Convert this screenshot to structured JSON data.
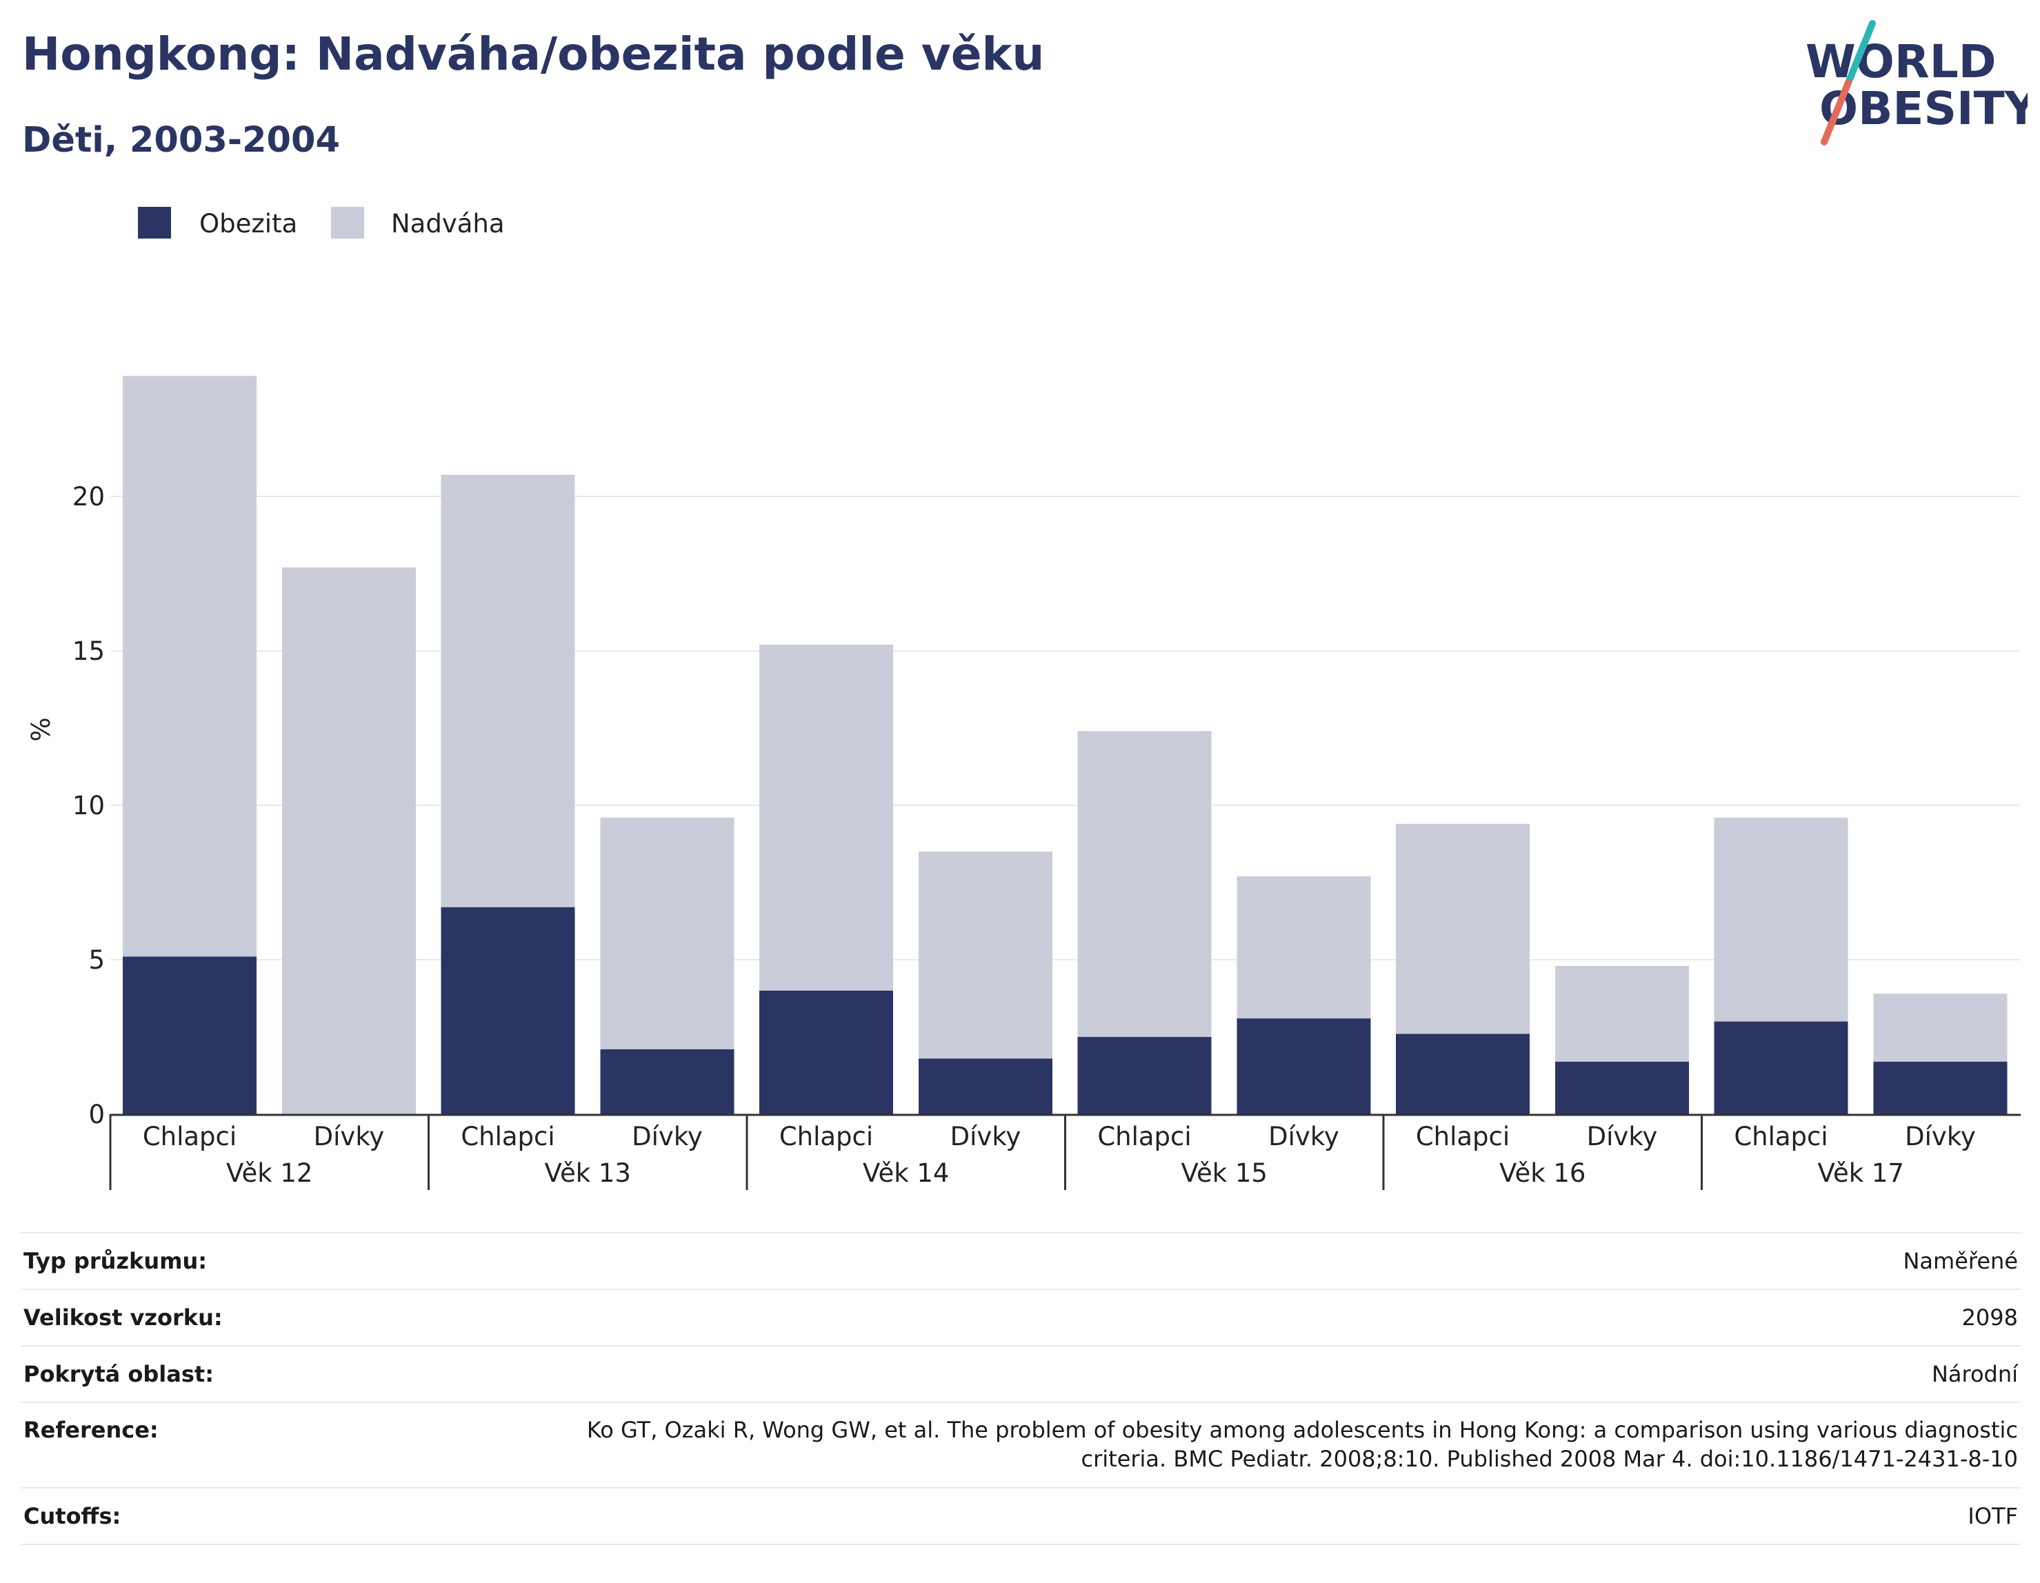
{
  "header": {
    "title": "Hongkong: Nadváha/obezita podle věku",
    "subtitle": "Děti, 2003-2004"
  },
  "logo": {
    "line1": "WORLD",
    "line2": "OBESITY"
  },
  "colors": {
    "obesity": "#2a3563",
    "overweight": "#cacdd9",
    "accent_teal": "#2bb5b5",
    "accent_coral": "#e56a5a"
  },
  "chart_data": {
    "type": "bar",
    "stacked": true,
    "ylabel": "%",
    "ylim": [
      0,
      24
    ],
    "yticks": [
      0,
      5,
      10,
      15,
      20
    ],
    "grid": true,
    "legend_position": "top-left",
    "groups": [
      {
        "label": "Věk 12",
        "bars": [
          {
            "label": "Chlapci",
            "obezita": 5.1,
            "nadvaha_total": 23.9
          },
          {
            "label": "Dívky",
            "obezita": 0,
            "nadvaha_total": 17.7
          }
        ]
      },
      {
        "label": "Věk 13",
        "bars": [
          {
            "label": "Chlapci",
            "obezita": 6.7,
            "nadvaha_total": 20.7
          },
          {
            "label": "Dívky",
            "obezita": 2.1,
            "nadvaha_total": 9.6
          }
        ]
      },
      {
        "label": "Věk 14",
        "bars": [
          {
            "label": "Chlapci",
            "obezita": 4.0,
            "nadvaha_total": 15.2
          },
          {
            "label": "Dívky",
            "obezita": 1.8,
            "nadvaha_total": 8.5
          }
        ]
      },
      {
        "label": "Věk 15",
        "bars": [
          {
            "label": "Chlapci",
            "obezita": 2.5,
            "nadvaha_total": 12.4
          },
          {
            "label": "Dívky",
            "obezita": 3.1,
            "nadvaha_total": 7.7
          }
        ]
      },
      {
        "label": "Věk 16",
        "bars": [
          {
            "label": "Chlapci",
            "obezita": 2.6,
            "nadvaha_total": 9.4
          },
          {
            "label": "Dívky",
            "obezita": 1.7,
            "nadvaha_total": 4.8
          }
        ]
      },
      {
        "label": "Věk 17",
        "bars": [
          {
            "label": "Chlapci",
            "obezita": 3.0,
            "nadvaha_total": 9.6
          },
          {
            "label": "Dívky",
            "obezita": 1.7,
            "nadvaha_total": 3.9
          }
        ]
      }
    ],
    "series": [
      {
        "name": "Obezita",
        "color": "#2a3563"
      },
      {
        "name": "Nadváha",
        "color": "#cacdd9"
      }
    ]
  },
  "info": {
    "survey_type": {
      "key": "Typ průzkumu:",
      "value": "Naměřené"
    },
    "sample_size": {
      "key": "Velikost vzorku:",
      "value": "2098"
    },
    "area": {
      "key": "Pokrytá oblast:",
      "value": "Národní"
    },
    "reference": {
      "key": "Reference:",
      "value_line1": "Ko GT, Ozaki R, Wong GW, et al. The problem of obesity among adolescents in Hong Kong: a comparison using various diagnostic",
      "value_line2": "criteria. BMC Pediatr. 2008;8:10. Published 2008 Mar 4. doi:10.1186/1471-2431-8-10"
    },
    "cutoffs": {
      "key": "Cutoffs:",
      "value": "IOTF"
    }
  }
}
